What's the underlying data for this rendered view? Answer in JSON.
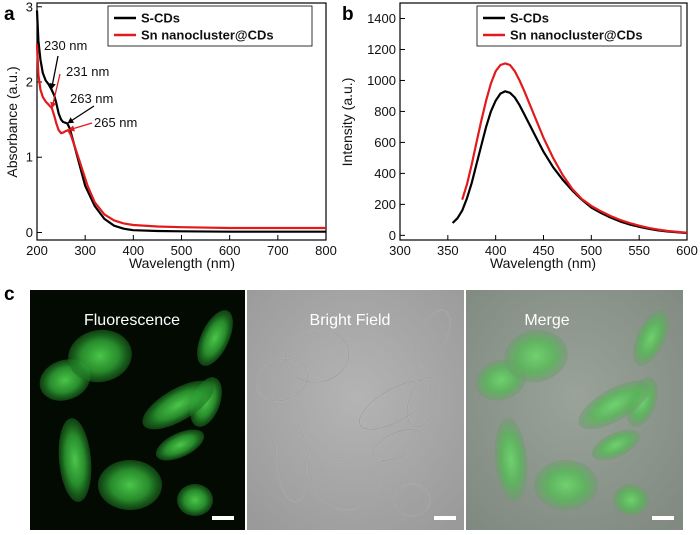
{
  "panels": {
    "a": "a",
    "b": "b",
    "c": "c"
  },
  "chart_data": [
    {
      "type": "line",
      "panel": "a",
      "xlabel": "Wavelength (nm)",
      "ylabel": "Absorbance (a.u.)",
      "xlim": [
        200,
        800
      ],
      "ylim": [
        -0.1,
        3.05
      ],
      "xticks": [
        200,
        300,
        400,
        500,
        600,
        700,
        800
      ],
      "yticks": [
        0,
        1,
        2,
        3
      ],
      "legend_position": "top-right",
      "series": [
        {
          "name": "S-CDs",
          "color": "#000000",
          "x": [
            200,
            203,
            207,
            212,
            218,
            224,
            230,
            236,
            240,
            245,
            250,
            254,
            258,
            263,
            268,
            275,
            285,
            300,
            320,
            340,
            360,
            380,
            400,
            450,
            500,
            600,
            700,
            800
          ],
          "y": [
            2.95,
            2.55,
            2.3,
            2.12,
            2.02,
            1.97,
            1.9,
            1.82,
            1.72,
            1.58,
            1.5,
            1.47,
            1.46,
            1.45,
            1.38,
            1.22,
            0.98,
            0.62,
            0.35,
            0.18,
            0.09,
            0.05,
            0.03,
            0.02,
            0.015,
            0.01,
            0.01,
            0.01
          ]
        },
        {
          "name": "Sn nanocluster@CDs",
          "color": "#e31a1c",
          "x": [
            200,
            203,
            207,
            212,
            218,
            224,
            231,
            236,
            240,
            245,
            250,
            255,
            260,
            265,
            270,
            278,
            290,
            305,
            320,
            340,
            360,
            380,
            400,
            450,
            500,
            600,
            700,
            800
          ],
          "y": [
            2.5,
            2.1,
            1.9,
            1.8,
            1.74,
            1.7,
            1.65,
            1.55,
            1.45,
            1.36,
            1.32,
            1.33,
            1.35,
            1.36,
            1.3,
            1.15,
            0.92,
            0.62,
            0.4,
            0.24,
            0.16,
            0.12,
            0.1,
            0.08,
            0.07,
            0.06,
            0.06,
            0.06
          ]
        }
      ],
      "annotations": [
        {
          "text": "230 nm",
          "x": 230,
          "y": 1.9,
          "color": "#000000"
        },
        {
          "text": "231 nm",
          "x": 231,
          "y": 1.65,
          "color": "#e31a1c"
        },
        {
          "text": "263 nm",
          "x": 263,
          "y": 1.45,
          "color": "#000000"
        },
        {
          "text": "265 nm",
          "x": 265,
          "y": 1.36,
          "color": "#e31a1c"
        }
      ]
    },
    {
      "type": "line",
      "panel": "b",
      "xlabel": "Wavelength (nm)",
      "ylabel": "Intensity (a.u.)",
      "xlim": [
        300,
        600
      ],
      "ylim": [
        -30,
        1500
      ],
      "xticks": [
        300,
        350,
        400,
        450,
        500,
        550,
        600
      ],
      "yticks": [
        0,
        200,
        400,
        600,
        800,
        1000,
        1200,
        1400
      ],
      "legend_position": "top-right",
      "series": [
        {
          "name": "S-CDs",
          "color": "#000000",
          "x": [
            355,
            360,
            365,
            370,
            375,
            380,
            385,
            390,
            395,
            400,
            405,
            410,
            415,
            420,
            425,
            430,
            440,
            450,
            460,
            470,
            480,
            490,
            500,
            510,
            520,
            530,
            540,
            550,
            560,
            570,
            580,
            590,
            600
          ],
          "y": [
            80,
            110,
            160,
            240,
            340,
            460,
            580,
            700,
            800,
            870,
            915,
            930,
            920,
            890,
            840,
            780,
            660,
            540,
            440,
            360,
            290,
            230,
            180,
            145,
            115,
            90,
            70,
            55,
            42,
            32,
            25,
            20,
            15
          ]
        },
        {
          "name": "Sn nanocluster@CDs",
          "color": "#e31a1c",
          "x": [
            365,
            370,
            375,
            380,
            385,
            390,
            395,
            400,
            405,
            410,
            415,
            420,
            425,
            430,
            440,
            450,
            460,
            470,
            480,
            490,
            500,
            510,
            520,
            530,
            540,
            550,
            560,
            570,
            580,
            590,
            600
          ],
          "y": [
            230,
            330,
            460,
            600,
            740,
            870,
            980,
            1060,
            1100,
            1110,
            1100,
            1060,
            1000,
            930,
            780,
            630,
            500,
            390,
            300,
            235,
            190,
            155,
            125,
            100,
            80,
            62,
            48,
            37,
            28,
            22,
            17
          ]
        }
      ]
    }
  ],
  "micrographs": {
    "labels": [
      "Fluorescence",
      "Bright Field",
      "Merge"
    ],
    "colors": {
      "fluorescence_bg": "#020a02",
      "brightfield_bg": "#a7a7a7",
      "cell_green": "#39b83b",
      "scale_bar": "#ffffff"
    }
  }
}
